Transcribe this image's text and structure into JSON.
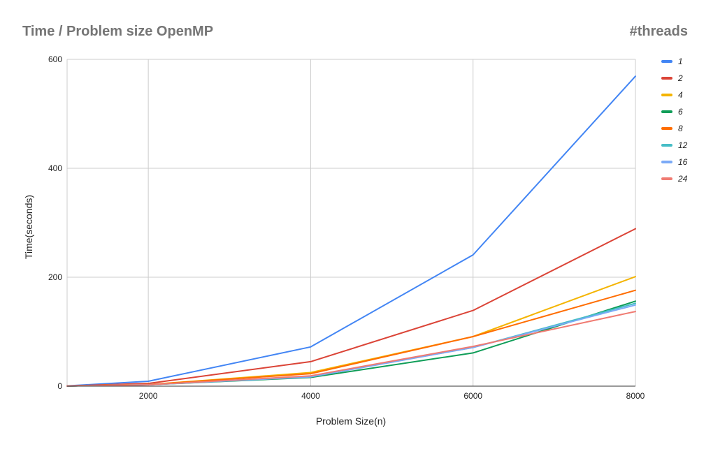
{
  "chart_data": {
    "type": "line",
    "title": "Time / Problem size OpenMP",
    "legend_title": "#threads",
    "xlabel": "Problem Size(n)",
    "ylabel": "Time(seconds)",
    "x": [
      1000,
      2000,
      4000,
      6000,
      8000
    ],
    "xticks": [
      2000,
      4000,
      6000,
      8000
    ],
    "xlim": [
      1000,
      8000
    ],
    "yticks": [
      0,
      200,
      400,
      600
    ],
    "ylim": [
      0,
      600
    ],
    "grid": true,
    "legend_position": "right",
    "series": [
      {
        "name": "1",
        "color": "#4285f4",
        "values": [
          0.5,
          9,
          72,
          241,
          569
        ]
      },
      {
        "name": "2",
        "color": "#db4437",
        "values": [
          0.3,
          5,
          45,
          139,
          289
        ]
      },
      {
        "name": "4",
        "color": "#f4b400",
        "values": [
          0.2,
          3,
          25,
          91,
          201
        ]
      },
      {
        "name": "6",
        "color": "#0f9d58",
        "values": [
          0.2,
          2.5,
          16,
          61,
          156
        ]
      },
      {
        "name": "8",
        "color": "#ff6d01",
        "values": [
          0.2,
          3,
          23,
          91,
          176
        ]
      },
      {
        "name": "12",
        "color": "#46bdc6",
        "values": [
          0.2,
          2.5,
          18,
          71,
          152
        ]
      },
      {
        "name": "16",
        "color": "#7baaf7",
        "values": [
          0.2,
          2.5,
          17,
          71,
          149
        ]
      },
      {
        "name": "24",
        "color": "#f07b72",
        "values": [
          0.2,
          2.5,
          19,
          73,
          137
        ]
      }
    ]
  }
}
